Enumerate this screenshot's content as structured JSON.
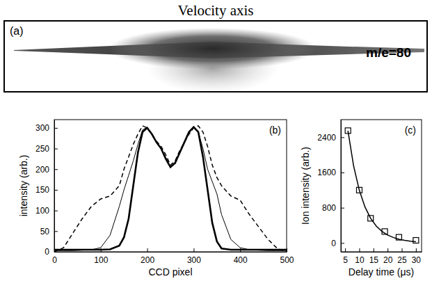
{
  "chart_data": [
    {
      "type": "image",
      "label": "(a)",
      "title": "Velocity axis",
      "annotation": "m/e=80"
    },
    {
      "type": "line",
      "label": "(b)",
      "x_label": "CCD pixel",
      "y_label": "intensity (arb.)",
      "xlim": [
        0,
        500
      ],
      "xticks": [
        0,
        100,
        200,
        300,
        400,
        500
      ],
      "ylim": [
        0,
        320
      ],
      "yticks": [
        0,
        50,
        100,
        150,
        200,
        250,
        300
      ],
      "x": [
        0,
        20,
        40,
        60,
        80,
        100,
        120,
        140,
        150,
        160,
        170,
        180,
        190,
        200,
        210,
        220,
        230,
        240,
        250,
        260,
        270,
        280,
        290,
        300,
        310,
        320,
        330,
        340,
        350,
        360,
        380,
        400,
        420,
        440,
        460,
        480,
        500
      ],
      "series": [
        {
          "color": "#000000",
          "line_style": "solid",
          "values": [
            5,
            5,
            5,
            5,
            5,
            5,
            6,
            15,
            35,
            80,
            160,
            240,
            290,
            300,
            285,
            265,
            250,
            225,
            205,
            215,
            240,
            265,
            290,
            302,
            290,
            230,
            150,
            70,
            25,
            8,
            5,
            5,
            5,
            5,
            5,
            5,
            5
          ]
        },
        {
          "color": "#000000",
          "line_style": "solid",
          "values": [
            3,
            3,
            3,
            4,
            5,
            10,
            40,
            110,
            150,
            185,
            220,
            260,
            295,
            302,
            285,
            265,
            250,
            228,
            205,
            215,
            240,
            265,
            292,
            300,
            290,
            250,
            200,
            170,
            140,
            90,
            30,
            10,
            5,
            4,
            3,
            3,
            3
          ]
        },
        {
          "color": "#000000",
          "line_style": "dashed",
          "values": [
            0,
            10,
            45,
            80,
            110,
            128,
            135,
            160,
            200,
            230,
            260,
            285,
            305,
            300,
            285,
            268,
            255,
            235,
            210,
            220,
            245,
            265,
            285,
            300,
            305,
            290,
            255,
            210,
            180,
            160,
            135,
            125,
            90,
            60,
            30,
            8,
            0
          ]
        }
      ]
    },
    {
      "type": "scatter",
      "label": "(c)",
      "x_label": "Delay time (μs)",
      "y_label": "Ion intensity (arb.)",
      "xlim": [
        3.5,
        32
      ],
      "xticks": [
        5,
        10,
        15,
        20,
        25,
        30
      ],
      "ylim": [
        -200,
        2800
      ],
      "yticks": [
        0,
        800,
        1600,
        2400
      ],
      "series": [
        {
          "type": "scatter",
          "marker": "square",
          "color": "#000000",
          "x": [
            6,
            10,
            14,
            19,
            24,
            30
          ],
          "values": [
            2550,
            1200,
            560,
            260,
            130,
            60
          ]
        },
        {
          "type": "line",
          "line_style": "solid",
          "color": "#000000",
          "x": [
            6,
            8,
            10,
            12,
            14,
            16,
            18,
            20,
            22,
            24,
            26,
            28,
            30
          ],
          "values": [
            2550,
            1750,
            1200,
            820,
            560,
            385,
            265,
            180,
            125,
            85,
            60,
            40,
            28
          ]
        }
      ]
    }
  ]
}
